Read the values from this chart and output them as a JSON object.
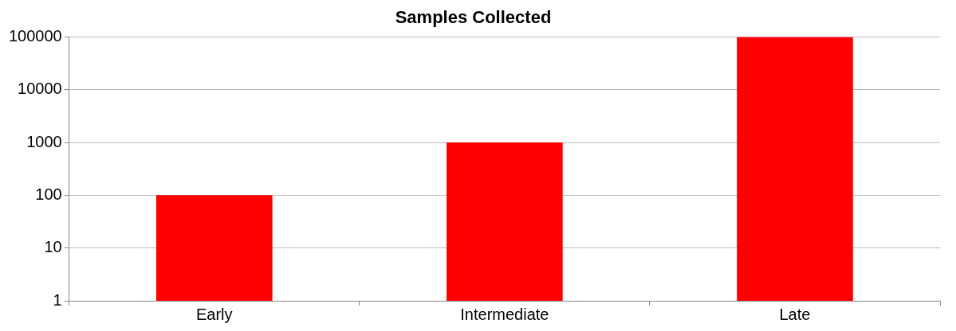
{
  "chart_data": {
    "type": "bar",
    "title": "Samples Collected",
    "categories": [
      "Early",
      "Intermediate",
      "Late"
    ],
    "values": [
      100,
      1000,
      100000
    ],
    "color": "#ff0000",
    "log": "y",
    "ylim": [
      1,
      100000
    ],
    "yticks": [
      1,
      10,
      100,
      1000,
      10000,
      100000
    ],
    "grid": "y",
    "legend": false
  }
}
